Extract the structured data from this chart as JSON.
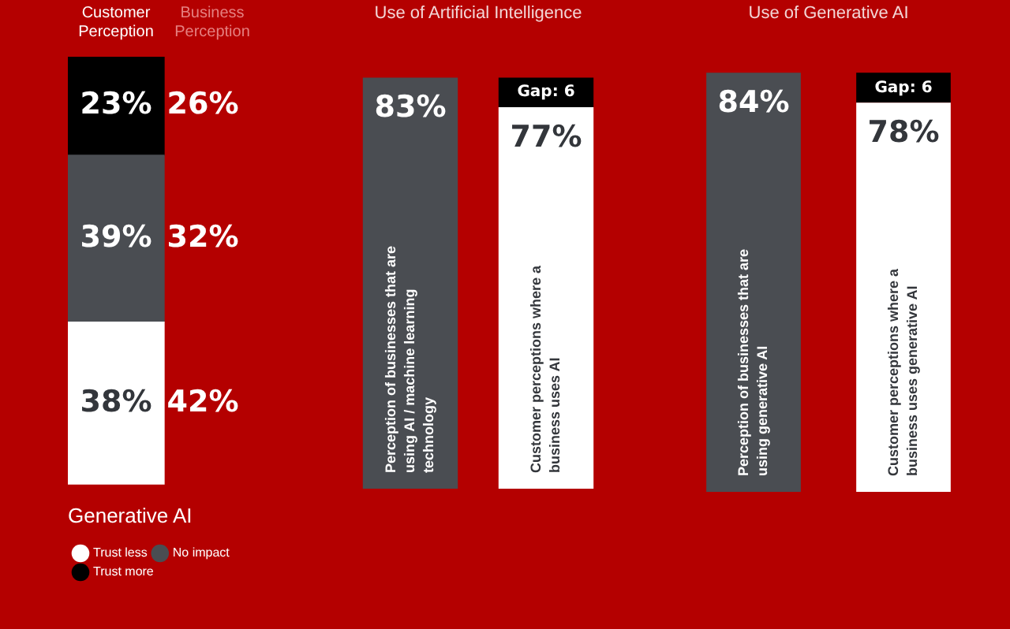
{
  "chart_data": [
    {
      "type": "bar",
      "stacked": true,
      "categories": [
        "Customer Perception",
        "Business Perception"
      ],
      "series": [
        {
          "name": "Trust less",
          "color": "#ffffff",
          "values": [
            38,
            null
          ],
          "value_labels": [
            "38%",
            null
          ]
        },
        {
          "name": "No impact",
          "color": "#4a4d52",
          "values": [
            39,
            null
          ],
          "value_labels": [
            "39%",
            null
          ]
        },
        {
          "name": "Trust more",
          "color": "#000000",
          "values": [
            23,
            null
          ],
          "value_labels": [
            "23%",
            null
          ]
        }
      ],
      "annotations": [
        "42%",
        "32%",
        "26%"
      ],
      "legend": "bottom left",
      "legend_title": "Generative AI",
      "ylim": [
        0,
        100
      ],
      "tick_labels": "x"
    },
    {
      "type": "bar",
      "title": "Use of Artificial Intelligence",
      "stacked": true,
      "categories": [
        "Perception of businesses that are using AI / machine learning technology",
        "Customer perceptions where a business uses AI"
      ],
      "series": [
        {
          "colors": [
            "#4a4d52",
            "#ffffff"
          ],
          "values": [
            83,
            77
          ],
          "value_labels": [
            "83%",
            "77%"
          ]
        },
        {
          "color": "#000000",
          "values": [
            null,
            6
          ],
          "value_labels": [
            null,
            "Gap: 6"
          ]
        }
      ],
      "tick_labels": false
    },
    {
      "type": "bar",
      "title": "Use of Generative AI",
      "stacked": true,
      "categories": [
        "Perception of businesses that are using generative AI",
        "Customer perceptions where a business uses generative AI"
      ],
      "series": [
        {
          "colors": [
            "#4a4d52",
            "#ffffff"
          ],
          "values": [
            84,
            78
          ],
          "value_labels": [
            "84%",
            "78%"
          ]
        },
        {
          "color": "#000000",
          "values": [
            null,
            6
          ],
          "value_labels": [
            null,
            "Gap: 6"
          ]
        }
      ],
      "tick_labels": false
    }
  ]
}
